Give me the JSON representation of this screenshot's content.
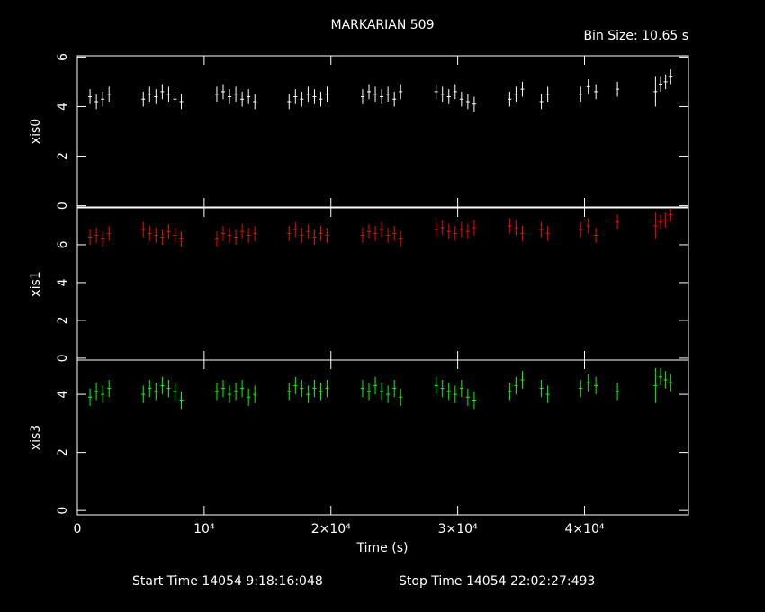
{
  "chart_data": {
    "type": "errorbar",
    "title": "MARKARIAN 509",
    "subtitle": "Bin Size: 10.65 s",
    "xlabel": "Time (s)",
    "footer_start": "Start Time 14054  9:18:16:048",
    "footer_stop": "Stop Time 14054 22:02:27:493",
    "xlim": [
      0,
      48200
    ],
    "xticks": [
      0,
      {
        "value": 10000,
        "label": "10⁴"
      },
      {
        "value": 20000,
        "label": "2×10⁴"
      },
      {
        "value": 30000,
        "label": "3×10⁴"
      },
      {
        "value": 40000,
        "label": "4×10⁴"
      }
    ],
    "x": [
      1000,
      1500,
      2000,
      2500,
      5200,
      5700,
      6200,
      6700,
      7200,
      7700,
      8200,
      11000,
      11500,
      12000,
      12500,
      13000,
      13500,
      14000,
      16700,
      17200,
      17700,
      18200,
      18700,
      19200,
      19700,
      22500,
      23000,
      23500,
      24000,
      24500,
      25000,
      25500,
      28300,
      28800,
      29300,
      29800,
      30300,
      30800,
      31300,
      34100,
      34600,
      35100,
      36600,
      37100,
      39700,
      40300,
      40900,
      42600,
      45600,
      46000,
      46400,
      46800
    ],
    "panels": [
      {
        "ylabel": "xis0",
        "ylim": [
          -0.05,
          6.05
        ],
        "yticks": [
          0,
          2,
          4,
          6
        ],
        "series": [
          {
            "color": "#ffffff",
            "values": [
              4.4,
              4.2,
              4.3,
              4.5,
              4.3,
              4.5,
              4.4,
              4.6,
              4.5,
              4.3,
              4.2,
              4.5,
              4.6,
              4.4,
              4.5,
              4.3,
              4.4,
              4.2,
              4.2,
              4.4,
              4.3,
              4.5,
              4.4,
              4.3,
              4.5,
              4.4,
              4.6,
              4.5,
              4.4,
              4.5,
              4.3,
              4.6,
              4.6,
              4.5,
              4.4,
              4.6,
              4.3,
              4.2,
              4.1,
              4.3,
              4.5,
              4.7,
              4.2,
              4.5,
              4.5,
              4.8,
              4.6,
              4.7,
              4.6,
              4.9,
              5.0,
              5.2
            ],
            "errors": [
              0.3,
              0.3,
              0.3,
              0.3,
              0.3,
              0.3,
              0.3,
              0.3,
              0.3,
              0.3,
              0.3,
              0.3,
              0.3,
              0.3,
              0.3,
              0.3,
              0.3,
              0.3,
              0.3,
              0.3,
              0.3,
              0.3,
              0.3,
              0.3,
              0.3,
              0.3,
              0.3,
              0.3,
              0.3,
              0.3,
              0.3,
              0.3,
              0.3,
              0.3,
              0.3,
              0.3,
              0.3,
              0.3,
              0.3,
              0.3,
              0.3,
              0.3,
              0.3,
              0.3,
              0.3,
              0.3,
              0.3,
              0.3,
              0.6,
              0.3,
              0.3,
              0.3
            ]
          }
        ]
      },
      {
        "ylabel": "xis1",
        "ylim": [
          -0.1,
          7.95
        ],
        "yticks": [
          0,
          2,
          4,
          6
        ],
        "series": [
          {
            "color": "#ff0000",
            "values": [
              6.4,
              6.5,
              6.3,
              6.6,
              6.8,
              6.6,
              6.5,
              6.4,
              6.7,
              6.5,
              6.3,
              6.3,
              6.6,
              6.5,
              6.4,
              6.7,
              6.5,
              6.6,
              6.6,
              6.8,
              6.5,
              6.7,
              6.4,
              6.6,
              6.5,
              6.5,
              6.7,
              6.6,
              6.8,
              6.5,
              6.6,
              6.3,
              6.8,
              6.9,
              6.7,
              6.6,
              6.8,
              6.7,
              6.9,
              7.0,
              6.9,
              6.6,
              6.8,
              6.6,
              6.8,
              7.0,
              6.5,
              7.2,
              7.0,
              7.2,
              7.3,
              7.6
            ],
            "errors": [
              0.4,
              0.4,
              0.4,
              0.4,
              0.4,
              0.4,
              0.4,
              0.4,
              0.4,
              0.4,
              0.4,
              0.4,
              0.4,
              0.4,
              0.4,
              0.4,
              0.4,
              0.4,
              0.4,
              0.4,
              0.4,
              0.4,
              0.4,
              0.4,
              0.4,
              0.4,
              0.4,
              0.4,
              0.4,
              0.4,
              0.4,
              0.4,
              0.4,
              0.4,
              0.4,
              0.4,
              0.4,
              0.4,
              0.4,
              0.4,
              0.4,
              0.4,
              0.4,
              0.4,
              0.4,
              0.4,
              0.4,
              0.4,
              0.7,
              0.4,
              0.4,
              0.4
            ]
          }
        ]
      },
      {
        "ylabel": "xis3",
        "ylim": [
          -0.15,
          5.18
        ],
        "yticks": [
          0,
          2,
          4
        ],
        "series": [
          {
            "color": "#00ff00",
            "values": [
              3.9,
              4.1,
              4.0,
              4.2,
              4.0,
              4.2,
              4.1,
              4.3,
              4.2,
              4.1,
              3.8,
              4.1,
              4.2,
              4.0,
              4.1,
              4.2,
              3.9,
              4.0,
              4.1,
              4.3,
              4.2,
              4.0,
              4.2,
              4.1,
              4.2,
              4.2,
              4.1,
              4.3,
              4.1,
              4.0,
              4.2,
              3.9,
              4.3,
              4.2,
              4.1,
              4.0,
              4.2,
              3.9,
              3.8,
              4.1,
              4.3,
              4.5,
              4.2,
              4.0,
              4.2,
              4.4,
              4.3,
              4.1,
              4.3,
              4.6,
              4.5,
              4.4
            ],
            "errors": [
              0.3,
              0.3,
              0.3,
              0.3,
              0.3,
              0.3,
              0.3,
              0.3,
              0.3,
              0.3,
              0.3,
              0.3,
              0.3,
              0.3,
              0.3,
              0.3,
              0.3,
              0.3,
              0.3,
              0.3,
              0.3,
              0.3,
              0.3,
              0.3,
              0.3,
              0.3,
              0.3,
              0.3,
              0.3,
              0.3,
              0.3,
              0.3,
              0.3,
              0.3,
              0.3,
              0.3,
              0.3,
              0.3,
              0.3,
              0.3,
              0.3,
              0.3,
              0.3,
              0.3,
              0.3,
              0.3,
              0.3,
              0.3,
              0.6,
              0.3,
              0.3,
              0.3
            ]
          }
        ]
      }
    ]
  }
}
